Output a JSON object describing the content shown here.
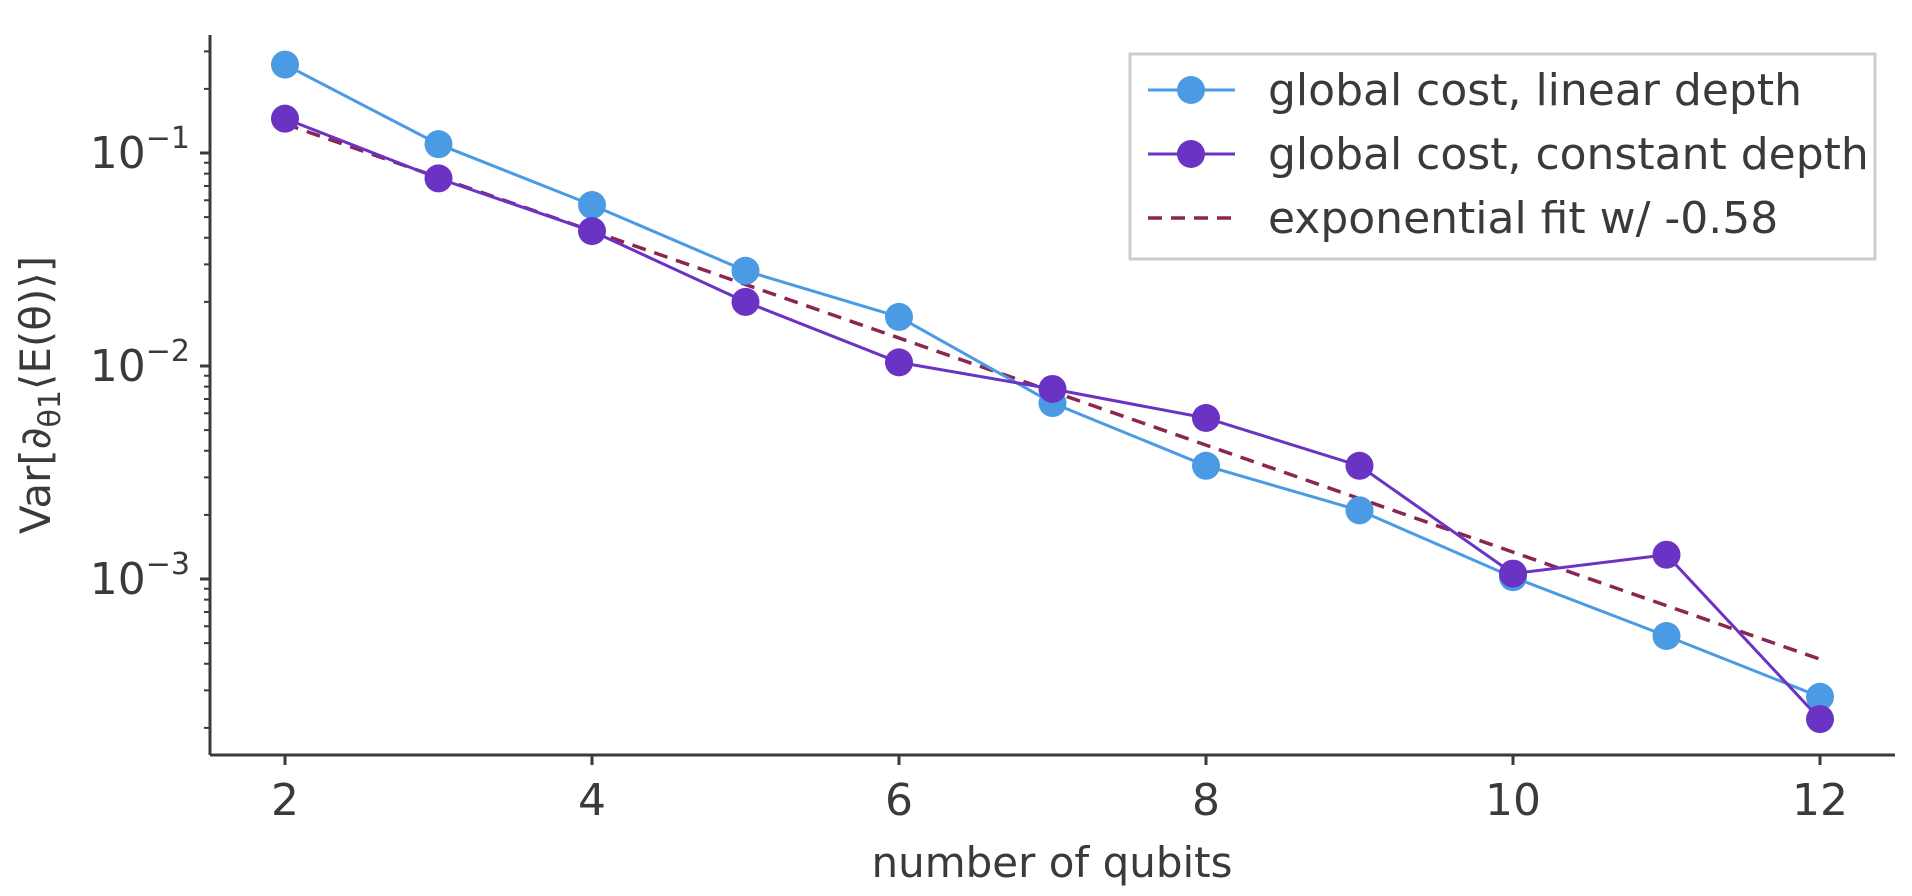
{
  "chart_data": {
    "type": "line",
    "title": "",
    "xlabel": "number of qubits",
    "ylabel": {
      "prefix": "Var[∂",
      "sub": "θ1",
      "suffix": "⟨E(θ)⟩]"
    },
    "xlim": [
      1.5,
      12.5
    ],
    "ylim": [
      0.00014,
      0.34
    ],
    "yscale": "log",
    "grid": false,
    "legend_position": "top-right",
    "x_ticks": [
      2,
      4,
      6,
      8,
      10,
      12
    ],
    "x_tick_labels": [
      "2",
      "4",
      "6",
      "8",
      "10",
      "12"
    ],
    "y_ticks": [
      {
        "value": 0.1,
        "base": "10",
        "exp": "−1"
      },
      {
        "value": 0.01,
        "base": "10",
        "exp": "−2"
      },
      {
        "value": 0.001,
        "base": "10",
        "exp": "−3"
      }
    ],
    "series": [
      {
        "name": "global cost, linear depth",
        "style": "solid-marker",
        "color": "#4a9be3",
        "x": [
          2,
          3,
          4,
          5,
          6,
          7,
          8,
          9,
          10,
          11,
          12
        ],
        "y": [
          0.26,
          0.11,
          0.057,
          0.028,
          0.017,
          0.0067,
          0.0034,
          0.0021,
          0.00102,
          0.00054,
          0.00028
        ]
      },
      {
        "name": "global cost, constant depth",
        "style": "solid-marker",
        "color": "#6a33c4",
        "x": [
          2,
          3,
          4,
          5,
          6,
          7,
          8,
          9,
          10,
          11,
          12
        ],
        "y": [
          0.145,
          0.076,
          0.043,
          0.02,
          0.0104,
          0.0078,
          0.0057,
          0.0034,
          0.00106,
          0.0013,
          0.00022
        ]
      },
      {
        "name": "exponential fit w/ -0.58",
        "style": "dashed",
        "color": "#8b2552",
        "x": [
          2,
          12
        ],
        "y": [
          0.137,
          0.00042
        ]
      }
    ]
  }
}
